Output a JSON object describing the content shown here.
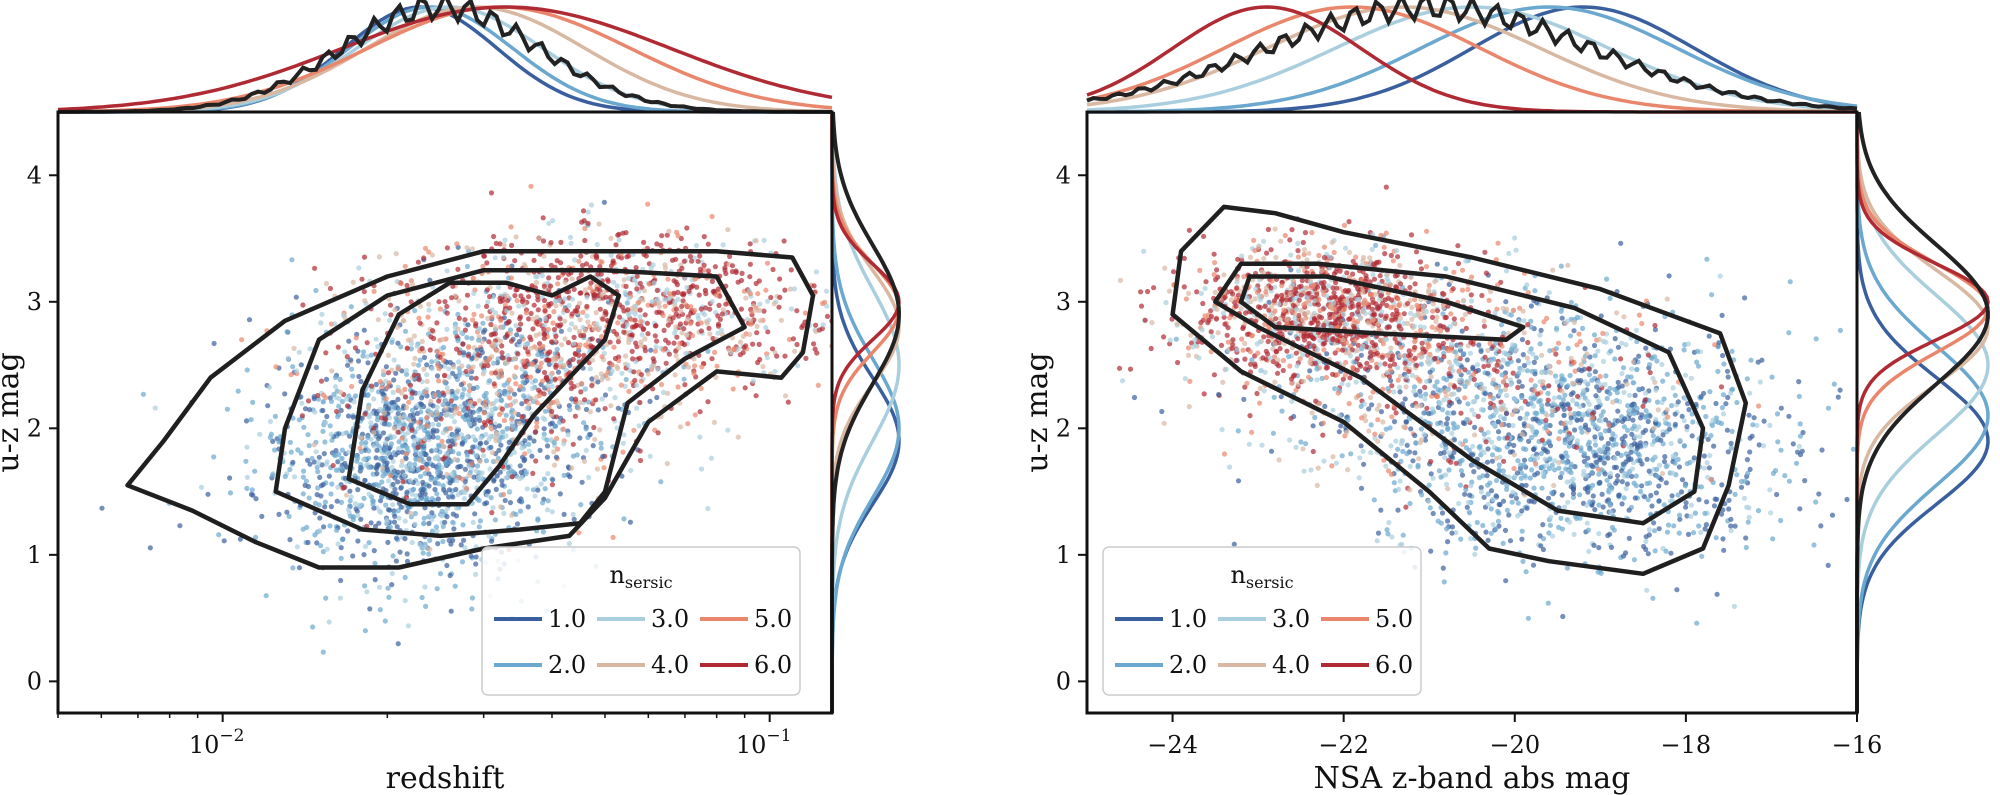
{
  "chart_data": [
    {
      "type": "scatter",
      "xlabel": "redshift",
      "ylabel": "u-z mag",
      "xscale": "log",
      "xlim": [
        0.005,
        0.13
      ],
      "ylim": [
        -0.25,
        4.5
      ],
      "xticks": [
        {
          "value": 0.01,
          "base": "10",
          "exp": "−2"
        },
        {
          "value": 0.1,
          "base": "10",
          "exp": "−1"
        }
      ],
      "yticks": [
        0,
        1,
        2,
        3,
        4
      ],
      "legend": {
        "title_main": "n",
        "title_sub": "sersic",
        "placement": "lower-right",
        "entries": [
          "1.0",
          "2.0",
          "3.0",
          "4.0",
          "5.0",
          "6.0"
        ]
      },
      "clusters": [
        {
          "label": "blue",
          "n": 1.0,
          "cx": 0.022,
          "cy": 1.75,
          "sx": 0.14,
          "sy": 0.45
        },
        {
          "label": "mid",
          "n": 3.0,
          "cx": 0.032,
          "cy": 2.3,
          "sx": 0.16,
          "sy": 0.45
        },
        {
          "label": "red",
          "n": 6.0,
          "cx": 0.055,
          "cy": 2.95,
          "sx": 0.2,
          "sy": 0.3
        }
      ],
      "contours": [
        [
          [
            0.0067,
            1.55
          ],
          [
            0.0078,
            1.9
          ],
          [
            0.0095,
            2.4
          ],
          [
            0.013,
            2.85
          ],
          [
            0.02,
            3.2
          ],
          [
            0.03,
            3.4
          ],
          [
            0.05,
            3.4
          ],
          [
            0.08,
            3.4
          ],
          [
            0.11,
            3.35
          ],
          [
            0.12,
            3.05
          ],
          [
            0.115,
            2.6
          ],
          [
            0.105,
            2.4
          ],
          [
            0.08,
            2.45
          ],
          [
            0.06,
            2.05
          ],
          [
            0.05,
            1.45
          ],
          [
            0.043,
            1.15
          ],
          [
            0.03,
            1.05
          ],
          [
            0.021,
            0.9
          ],
          [
            0.015,
            0.9
          ],
          [
            0.0115,
            1.1
          ],
          [
            0.0088,
            1.35
          ],
          [
            0.0067,
            1.55
          ]
        ],
        [
          [
            0.0125,
            1.5
          ],
          [
            0.013,
            2.0
          ],
          [
            0.015,
            2.7
          ],
          [
            0.02,
            3.05
          ],
          [
            0.03,
            3.25
          ],
          [
            0.05,
            3.25
          ],
          [
            0.08,
            3.2
          ],
          [
            0.09,
            2.8
          ],
          [
            0.07,
            2.55
          ],
          [
            0.055,
            2.2
          ],
          [
            0.05,
            1.5
          ],
          [
            0.045,
            1.25
          ],
          [
            0.035,
            1.2
          ],
          [
            0.025,
            1.15
          ],
          [
            0.018,
            1.2
          ],
          [
            0.0125,
            1.5
          ]
        ],
        [
          [
            0.017,
            1.6
          ],
          [
            0.018,
            2.3
          ],
          [
            0.021,
            2.9
          ],
          [
            0.026,
            3.15
          ],
          [
            0.033,
            3.15
          ],
          [
            0.04,
            3.05
          ],
          [
            0.047,
            3.2
          ],
          [
            0.053,
            3.05
          ],
          [
            0.05,
            2.7
          ],
          [
            0.043,
            2.4
          ],
          [
            0.037,
            2.1
          ],
          [
            0.032,
            1.7
          ],
          [
            0.028,
            1.4
          ],
          [
            0.022,
            1.4
          ],
          [
            0.017,
            1.6
          ]
        ]
      ],
      "marginal_x": {
        "series": [
          {
            "n": 1.0,
            "peak": 0.023,
            "width": 0.14
          },
          {
            "n": 2.0,
            "peak": 0.024,
            "width": 0.15
          },
          {
            "n": 3.0,
            "peak": 0.026,
            "width": 0.17
          },
          {
            "n": 4.0,
            "peak": 0.029,
            "width": 0.2
          },
          {
            "n": 5.0,
            "peak": 0.032,
            "width": 0.24
          },
          {
            "n": 6.0,
            "peak": 0.033,
            "width": 0.3
          },
          {
            "n": "all",
            "peak": 0.025,
            "width": 0.18
          }
        ]
      },
      "marginal_y": {
        "series": [
          {
            "n": 1.0,
            "peak": 1.9,
            "width": 0.5
          },
          {
            "n": 2.0,
            "peak": 2.0,
            "width": 0.55
          },
          {
            "n": 3.0,
            "peak": 2.5,
            "width": 0.6
          },
          {
            "n": 4.0,
            "peak": 2.8,
            "width": 0.45
          },
          {
            "n": 5.0,
            "peak": 2.95,
            "width": 0.35
          },
          {
            "n": 6.0,
            "peak": 3.0,
            "width": 0.3
          },
          {
            "n": "all",
            "peak": 2.9,
            "width": 0.55
          }
        ]
      }
    },
    {
      "type": "scatter",
      "xlabel": "NSA z-band abs mag",
      "ylabel": "u-z mag",
      "xlim": [
        -25,
        -16
      ],
      "ylim": [
        -0.25,
        4.5
      ],
      "xticks": [
        {
          "value": -24,
          "label": "−24"
        },
        {
          "value": -22,
          "label": "−22"
        },
        {
          "value": -20,
          "label": "−20"
        },
        {
          "value": -18,
          "label": "−18"
        },
        {
          "value": -16,
          "label": "−16"
        }
      ],
      "yticks": [
        0,
        1,
        2,
        3,
        4
      ],
      "legend": {
        "title_main": "n",
        "title_sub": "sersic",
        "placement": "lower-left",
        "entries": [
          "1.0",
          "2.0",
          "3.0",
          "4.0",
          "5.0",
          "6.0"
        ]
      },
      "clusters": [
        {
          "label": "blue",
          "n": 1.0,
          "cx": -19.2,
          "cy": 1.85,
          "sx": 1.2,
          "sy": 0.45
        },
        {
          "label": "mid",
          "n": 3.0,
          "cx": -20.8,
          "cy": 2.4,
          "sx": 1.3,
          "sy": 0.4
        },
        {
          "label": "red",
          "n": 6.0,
          "cx": -22.2,
          "cy": 2.95,
          "sx": 0.8,
          "sy": 0.25
        }
      ],
      "contours": [
        [
          [
            -23.9,
            3.4
          ],
          [
            -23.4,
            3.75
          ],
          [
            -22.8,
            3.7
          ],
          [
            -22,
            3.55
          ],
          [
            -20.5,
            3.35
          ],
          [
            -19,
            3.1
          ],
          [
            -17.6,
            2.75
          ],
          [
            -17.3,
            2.2
          ],
          [
            -17.5,
            1.55
          ],
          [
            -17.8,
            1.05
          ],
          [
            -18.5,
            0.85
          ],
          [
            -19.6,
            0.95
          ],
          [
            -20.3,
            1.05
          ],
          [
            -21,
            1.5
          ],
          [
            -22,
            2.05
          ],
          [
            -23.2,
            2.45
          ],
          [
            -24,
            2.9
          ],
          [
            -23.9,
            3.4
          ]
        ],
        [
          [
            -23.2,
            3.3
          ],
          [
            -22.3,
            3.3
          ],
          [
            -20.8,
            3.2
          ],
          [
            -19.3,
            2.95
          ],
          [
            -18.2,
            2.6
          ],
          [
            -17.8,
            2.0
          ],
          [
            -17.9,
            1.5
          ],
          [
            -18.5,
            1.25
          ],
          [
            -19.5,
            1.35
          ],
          [
            -20.5,
            1.75
          ],
          [
            -21.8,
            2.4
          ],
          [
            -23,
            2.8
          ],
          [
            -23.5,
            3.0
          ],
          [
            -23.2,
            3.3
          ]
        ],
        [
          [
            -23.1,
            3.2
          ],
          [
            -22.2,
            3.2
          ],
          [
            -20.8,
            3.0
          ],
          [
            -19.9,
            2.8
          ],
          [
            -20.1,
            2.7
          ],
          [
            -21.6,
            2.75
          ],
          [
            -22.8,
            2.8
          ],
          [
            -23.2,
            3.0
          ],
          [
            -23.1,
            3.2
          ]
        ]
      ],
      "marginal_x": {
        "series": [
          {
            "n": 1.0,
            "peak": -19.2,
            "width": 1.3
          },
          {
            "n": 2.0,
            "peak": -19.6,
            "width": 1.5
          },
          {
            "n": 3.0,
            "peak": -20.5,
            "width": 1.6
          },
          {
            "n": 4.0,
            "peak": -21.3,
            "width": 1.6
          },
          {
            "n": 5.0,
            "peak": -21.9,
            "width": 1.5
          },
          {
            "n": 6.0,
            "peak": -22.9,
            "width": 1.1
          },
          {
            "n": "all",
            "peak": -21.0,
            "width": 1.9
          }
        ]
      },
      "marginal_y": {
        "series": [
          {
            "n": 1.0,
            "peak": 1.9,
            "width": 0.5
          },
          {
            "n": 2.0,
            "peak": 2.1,
            "width": 0.55
          },
          {
            "n": 3.0,
            "peak": 2.5,
            "width": 0.55
          },
          {
            "n": 4.0,
            "peak": 2.8,
            "width": 0.45
          },
          {
            "n": 5.0,
            "peak": 2.95,
            "width": 0.35
          },
          {
            "n": 6.0,
            "peak": 3.0,
            "width": 0.3
          },
          {
            "n": "all",
            "peak": 2.9,
            "width": 0.55
          }
        ]
      }
    }
  ],
  "palette": {
    "1.0": "#3a5f9e",
    "2.0": "#6aa8cf",
    "3.0": "#a9cfde",
    "4.0": "#d9b8a2",
    "5.0": "#e9866b",
    "6.0": "#b02a33",
    "all": "#222222"
  }
}
